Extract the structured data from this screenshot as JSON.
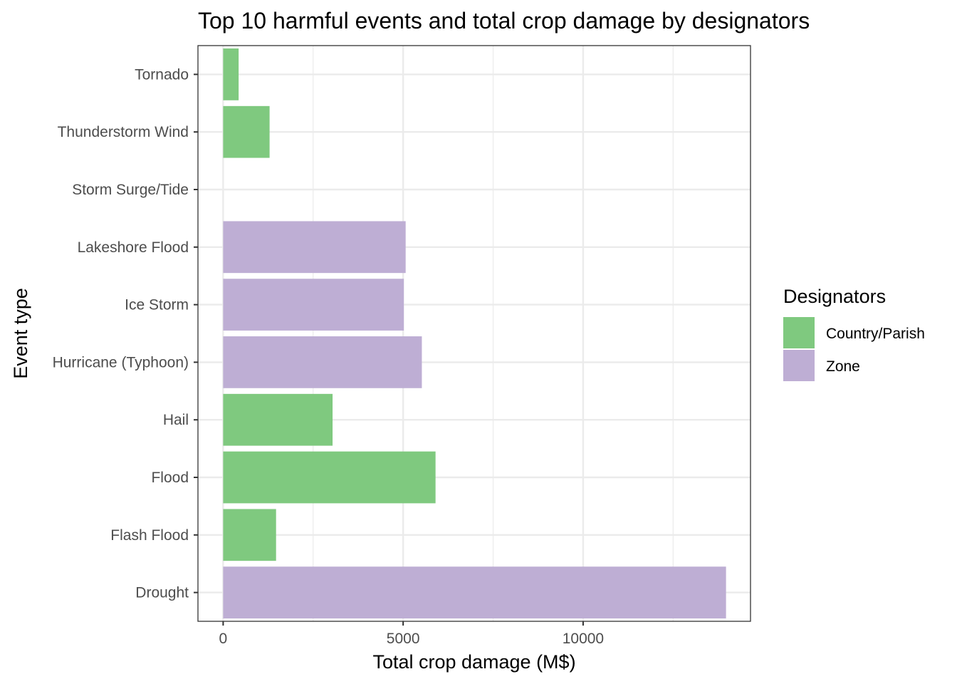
{
  "chart_data": {
    "type": "bar",
    "orientation": "horizontal",
    "title": "Top 10 harmful events and total crop damage by designators",
    "xlabel": "Total crop damage (M$)",
    "ylabel": "Event type",
    "xlim": [
      -700,
      14650
    ],
    "xticks": [
      0,
      5000,
      10000
    ],
    "xtick_labels": [
      "0",
      "5000",
      "10000"
    ],
    "grid": true,
    "legend": {
      "title": "Designators",
      "position": "right",
      "entries": [
        {
          "label": "Country/Parish",
          "color": "#7fc97f"
        },
        {
          "label": "Zone",
          "color": "#beaed4"
        }
      ]
    },
    "categories": [
      "Drought",
      "Flash Flood",
      "Flood",
      "Hail",
      "Hurricane (Typhoon)",
      "Ice Storm",
      "Lakeshore Flood",
      "Storm Surge/Tide",
      "Thunderstorm Wind",
      "Tornado"
    ],
    "values": [
      13970,
      1470,
      5900,
      3040,
      5520,
      5020,
      5070,
      0,
      1290,
      430
    ],
    "designators": [
      "Zone",
      "Country/Parish",
      "Country/Parish",
      "Country/Parish",
      "Zone",
      "Zone",
      "Zone",
      "Zone",
      "Country/Parish",
      "Country/Parish"
    ]
  }
}
